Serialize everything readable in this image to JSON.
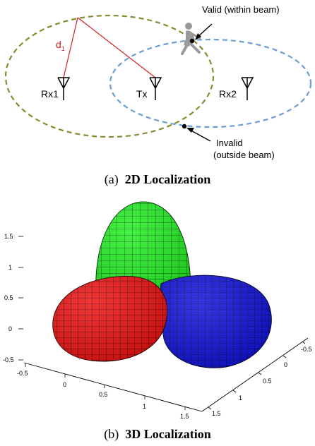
{
  "panel_a": {
    "label_d": "d",
    "label_d_sub": "1",
    "rx1": "Rx1",
    "tx": "Tx",
    "rx2": "Rx2",
    "valid_label": "Valid (within beam)",
    "invalid_line1": "Invalid",
    "invalid_line2": "(outside beam)",
    "caption_prefix": "(a)",
    "caption_title": "2D Localization",
    "colors": {
      "rx_ellipse": "#8a8a30",
      "tx_ellipse": "#6a9ed4",
      "distance_line": "#d42020",
      "person": "#9a9a9a"
    }
  },
  "panel_b": {
    "caption_prefix": "(b)",
    "caption_title": "3D Localization",
    "z_ticks": [
      "1.5",
      "1",
      "0.5",
      "0",
      "-0.5"
    ],
    "x_ticks": [
      "-0.5",
      "0",
      "0.5",
      "1",
      "1.5"
    ],
    "y_ticks": [
      "-0.5",
      "0",
      "0.5",
      "1",
      "1.5"
    ],
    "colors": {
      "top_lobe": "#22ee22",
      "left_lobe": "#ee1111",
      "right_lobe": "#1111dd"
    }
  }
}
